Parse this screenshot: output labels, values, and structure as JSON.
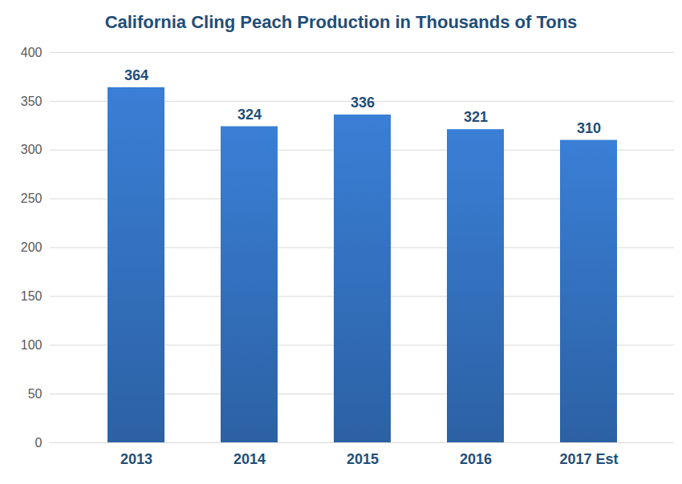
{
  "chart_data": {
    "type": "bar",
    "title": "California Cling Peach Production in Thousands of Tons",
    "categories": [
      "2013",
      "2014",
      "2015",
      "2016",
      "2017 Est"
    ],
    "values": [
      364,
      324,
      336,
      321,
      310
    ],
    "color": "#3a7fd6",
    "ylim": [
      0,
      400
    ],
    "yticks": [
      0,
      50,
      100,
      150,
      200,
      250,
      300,
      350,
      400
    ],
    "grid": true,
    "data_labels": true
  }
}
